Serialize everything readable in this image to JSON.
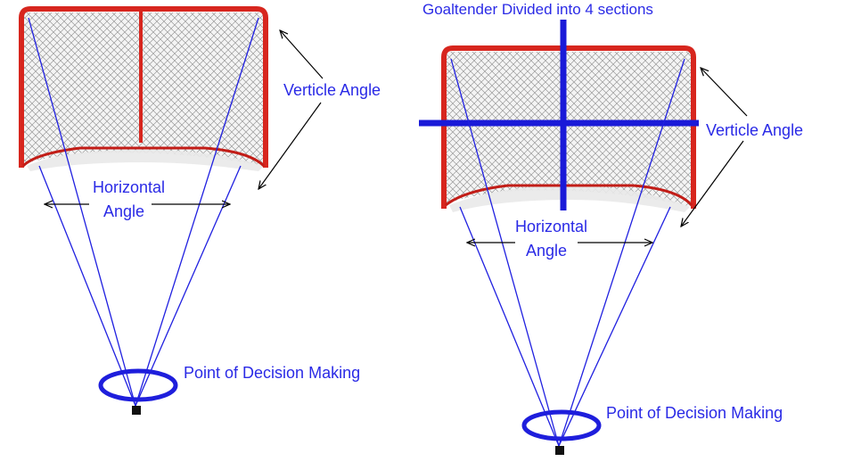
{
  "colors": {
    "frame": "#d7261e",
    "frame_dark": "#a8140f",
    "net": "#9a9a9a",
    "lines": "#2020e0",
    "ellipse": "#1e1edc",
    "cross": "#1a1ad8",
    "label": "#2a2ae6",
    "arrow": "#000000"
  },
  "left": {
    "vertical_label": "Verticle Angle",
    "horizontal_label_line1": "Horizontal",
    "horizontal_label_line2": "Angle",
    "decision_label": "Point of Decision Making"
  },
  "right": {
    "title": "Goaltender Divided into 4 sections",
    "vertical_label": "Verticle Angle",
    "horizontal_label_line1": "Horizontal",
    "horizontal_label_line2": "Angle",
    "decision_label": "Point of Decision Making"
  }
}
